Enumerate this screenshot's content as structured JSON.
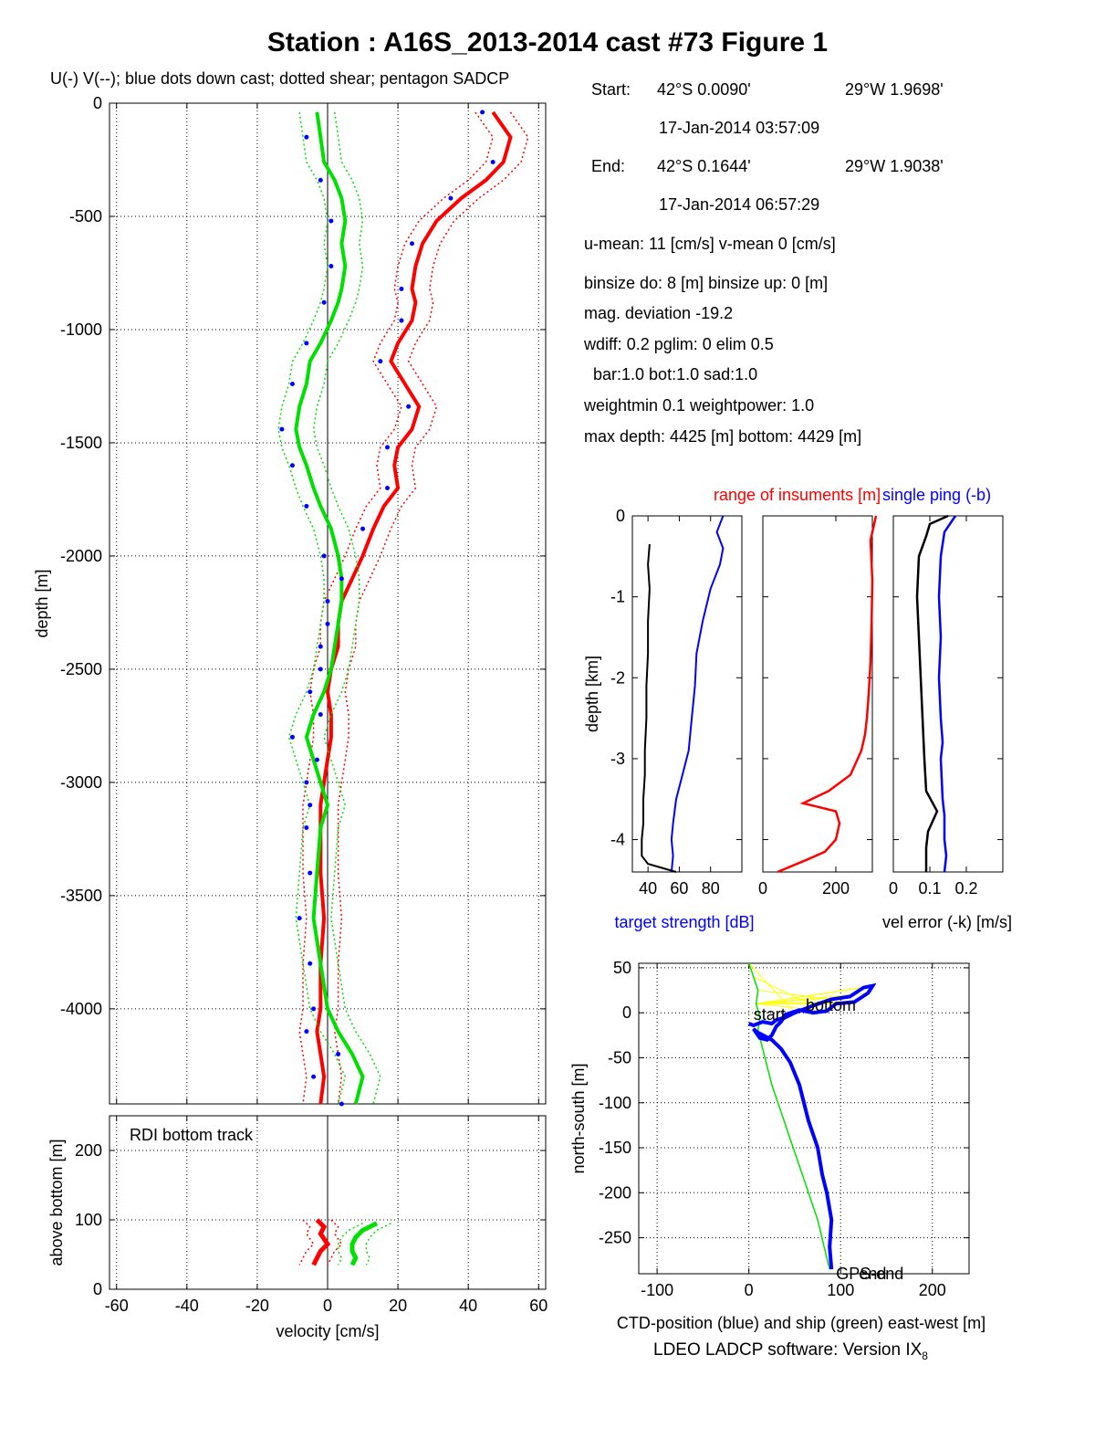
{
  "title": "Station : A16S_2013-2014 cast #73  Figure 1",
  "legend_note": "U(-) V(--); blue dots down cast; dotted shear; pentagon SADCP",
  "info": {
    "start_label": "Start:",
    "start_lat": "42°S  0.0090'",
    "start_lon": "29°W  1.9698'",
    "start_time": "17-Jan-2014 03:57:09",
    "end_label": "End:",
    "end_lat": "42°S  0.1644'",
    "end_lon": "29°W  1.9038'",
    "end_time": "17-Jan-2014 06:57:29",
    "lines": [
      "u-mean:  11 [cm/s]    v-mean   0 [cm/s]",
      "binsize do: 8 [m]  binsize up:  0 [m]",
      "mag. deviation -19.2",
      "wdiff: 0.2  pglim: 0  elim 0.5",
      "  bar:1.0 bot:1.0 sad:1.0",
      "weightmin 0.1  weightpower: 1.0",
      "max depth: 4425 [m]   bottom: 4429 [m]"
    ]
  },
  "footer": {
    "software": "LDEO LADCP software: Version IX",
    "version_sub": "8"
  },
  "colors": {
    "u": "#ff0000",
    "v": "#00e000",
    "down": "#0000ff",
    "ship": "#00e000",
    "ctd": "#0000ff",
    "track": "#ffff00",
    "grid": "#000000"
  },
  "chart_data": [
    {
      "type": "line",
      "title": "",
      "xlabel": "",
      "ylabel": "depth [m]",
      "xlim": [
        -62,
        62
      ],
      "ylim": [
        -4420,
        0
      ],
      "grid": true,
      "xticks": [
        -60,
        -40,
        -20,
        0,
        20,
        40,
        60
      ],
      "yticks": [
        0,
        -500,
        -1000,
        -1500,
        -2000,
        -2500,
        -3000,
        -3500,
        -4000
      ],
      "series": [
        {
          "name": "U",
          "color": "#ff0000",
          "x": [
            47,
            52,
            50,
            45,
            38,
            31,
            27,
            25,
            24,
            25,
            24,
            20,
            18,
            22,
            26,
            24,
            20,
            19,
            20,
            16,
            13,
            10,
            7,
            4,
            3,
            3,
            1,
            0,
            1,
            1,
            0,
            -1,
            -2,
            -2,
            -2,
            -1,
            -2,
            -2,
            -3,
            -2,
            -1,
            -2
          ],
          "y": [
            -40,
            -150,
            -260,
            -340,
            -420,
            -520,
            -620,
            -720,
            -820,
            -880,
            -960,
            -1060,
            -1140,
            -1240,
            -1340,
            -1440,
            -1520,
            -1600,
            -1700,
            -1780,
            -1880,
            -2000,
            -2100,
            -2200,
            -2300,
            -2400,
            -2500,
            -2600,
            -2700,
            -2800,
            -2900,
            -3000,
            -3100,
            -3200,
            -3400,
            -3600,
            -3800,
            -4000,
            -4100,
            -4200,
            -4300,
            -4420
          ]
        },
        {
          "name": "V",
          "color": "#00e000",
          "x": [
            -3,
            -2,
            -1,
            2,
            4,
            5,
            4,
            5,
            4,
            3,
            1,
            -2,
            -5,
            -6,
            -8,
            -9,
            -8,
            -6,
            -4,
            -2,
            1,
            3,
            4,
            4,
            3,
            2,
            1,
            -1,
            -4,
            -6,
            -4,
            -2,
            0,
            -2,
            -3,
            -4,
            -2,
            0,
            3,
            7,
            10,
            8
          ],
          "y": [
            -40,
            -150,
            -260,
            -340,
            -420,
            -520,
            -620,
            -720,
            -820,
            -880,
            -960,
            -1060,
            -1140,
            -1240,
            -1340,
            -1440,
            -1520,
            -1600,
            -1700,
            -1780,
            -1880,
            -2000,
            -2100,
            -2200,
            -2300,
            -2400,
            -2500,
            -2600,
            -2700,
            -2800,
            -2900,
            -3000,
            -3100,
            -3200,
            -3400,
            -3600,
            -3800,
            -4000,
            -4100,
            -4200,
            -4300,
            -4420
          ]
        }
      ]
    },
    {
      "type": "line",
      "title": "RDI bottom track",
      "xlabel": "velocity [cm/s]",
      "ylabel": "above bottom [m]",
      "xlim": [
        -62,
        62
      ],
      "ylim": [
        0,
        250
      ],
      "grid": true,
      "xticks": [
        -60,
        -40,
        -20,
        0,
        20,
        40,
        60
      ],
      "yticks": [
        0,
        100,
        200
      ],
      "series": [
        {
          "name": "U",
          "color": "#ff0000",
          "x": [
            -3,
            -1,
            -2,
            0,
            -2,
            -3,
            -4
          ],
          "y": [
            100,
            90,
            80,
            65,
            55,
            45,
            35
          ]
        },
        {
          "name": "V",
          "color": "#00e000",
          "x": [
            14,
            10,
            8,
            7,
            7,
            8,
            7
          ],
          "y": [
            95,
            85,
            75,
            65,
            55,
            45,
            35
          ]
        }
      ]
    },
    {
      "type": "line",
      "title": "",
      "xlabel": "target strength [dB]",
      "ylabel": "depth [km]",
      "xlim": [
        30,
        100
      ],
      "ylim": [
        -4.4,
        0
      ],
      "grid": false,
      "xticks": [
        40,
        60,
        80
      ],
      "yticks": [
        0,
        -1,
        -2,
        -3,
        -4
      ],
      "series": [
        {
          "name": "",
          "color": "#0000ff",
          "x": [
            88,
            84,
            88,
            86,
            80,
            75,
            71,
            70,
            68,
            66,
            62,
            58,
            56,
            55,
            56,
            55
          ],
          "y": [
            0,
            -0.2,
            -0.4,
            -0.6,
            -0.9,
            -1.3,
            -1.7,
            -2.1,
            -2.5,
            -2.9,
            -3.2,
            -3.5,
            -3.8,
            -4.0,
            -4.2,
            -4.4
          ]
        },
        {
          "name": "",
          "color": "#000000",
          "x": [
            41,
            40,
            41,
            40,
            40,
            39,
            39,
            38,
            38,
            37,
            37,
            36,
            36,
            36,
            40,
            58
          ],
          "y": [
            -0.35,
            -0.6,
            -0.9,
            -1.3,
            -1.7,
            -2.1,
            -2.5,
            -2.9,
            -3.2,
            -3.5,
            -3.8,
            -4.0,
            -4.1,
            -4.2,
            -4.3,
            -4.4
          ]
        }
      ]
    },
    {
      "type": "line",
      "title": "range of insuments [m]",
      "xlabel": "",
      "ylabel": "",
      "xlim": [
        0,
        300
      ],
      "ylim": [
        -4.4,
        0
      ],
      "grid": false,
      "xticks": [
        0,
        200
      ],
      "yticks": [
        0,
        -1,
        -2,
        -3,
        -4
      ],
      "series": [
        {
          "name": "",
          "color": "#ff0000",
          "x": [
            310,
            295,
            300,
            298,
            295,
            290,
            285,
            280,
            270,
            240,
            180,
            110,
            200,
            210,
            200,
            170,
            120,
            40
          ],
          "y": [
            0,
            -0.3,
            -0.8,
            -1.3,
            -1.8,
            -2.2,
            -2.5,
            -2.7,
            -2.9,
            -3.2,
            -3.4,
            -3.55,
            -3.65,
            -3.8,
            -4.0,
            -4.15,
            -4.25,
            -4.4
          ]
        }
      ]
    },
    {
      "type": "line",
      "title": "single ping (-b)",
      "xlabel": "vel error (-k) [m/s]",
      "ylabel": "",
      "xlim": [
        0,
        0.3
      ],
      "ylim": [
        -4.4,
        0
      ],
      "grid": false,
      "xticks": [
        0,
        0.1,
        0.2
      ],
      "yticks": [
        0,
        -1,
        -2,
        -3,
        -4
      ],
      "series": [
        {
          "name": "",
          "color": "#000000",
          "x": [
            0.15,
            0.1,
            0.09,
            0.07,
            0.065,
            0.07,
            0.075,
            0.08,
            0.085,
            0.09,
            0.12,
            0.11,
            0.095,
            0.09,
            0.09
          ],
          "y": [
            0,
            -0.1,
            -0.25,
            -0.5,
            -1.0,
            -1.5,
            -2.0,
            -2.5,
            -3.0,
            -3.4,
            -3.65,
            -3.75,
            -3.9,
            -4.1,
            -4.4
          ]
        },
        {
          "name": "",
          "color": "#0000ff",
          "x": [
            0.17,
            0.14,
            0.13,
            0.125,
            0.13,
            0.125,
            0.13,
            0.135,
            0.13,
            0.135,
            0.14,
            0.14,
            0.145,
            0.14
          ],
          "y": [
            0,
            -0.2,
            -0.5,
            -1.0,
            -1.5,
            -2.0,
            -2.5,
            -2.8,
            -3.0,
            -3.5,
            -3.7,
            -4.0,
            -4.2,
            -4.4
          ]
        }
      ]
    },
    {
      "type": "line",
      "title": "",
      "xlabel": "CTD-position (blue) and ship (green) east-west [m]",
      "ylabel": "north-south [m]",
      "xlim": [
        -120,
        240
      ],
      "ylim": [
        -290,
        55
      ],
      "grid": true,
      "xticks": [
        -100,
        0,
        100,
        200
      ],
      "yticks": [
        50,
        0,
        -50,
        -100,
        -150,
        -200,
        -250
      ],
      "annotations": [
        "start",
        "bottom",
        "GPS-end",
        "end"
      ],
      "series": [
        {
          "name": "",
          "color": "#0000ff",
          "x": [
            0,
            5,
            15,
            25,
            30,
            40,
            50,
            70,
            90,
            110,
            125,
            135,
            130,
            115,
            95,
            85,
            70,
            55,
            40,
            35,
            30,
            25,
            20,
            12,
            5,
            10,
            25,
            35,
            45,
            55,
            65,
            75,
            80,
            85,
            90,
            88,
            90
          ],
          "y": [
            -12,
            -14,
            -10,
            -12,
            -8,
            -5,
            0,
            8,
            15,
            18,
            28,
            30,
            22,
            12,
            10,
            2,
            0,
            3,
            -2,
            -10,
            -15,
            -25,
            -30,
            -28,
            -18,
            -22,
            -30,
            -40,
            -55,
            -80,
            -120,
            -150,
            -180,
            -200,
            -230,
            -260,
            -285
          ]
        },
        {
          "name": "",
          "color": "#00e000",
          "x": [
            0,
            5,
            10,
            8,
            12,
            10,
            15,
            25,
            35,
            45,
            55,
            65,
            75,
            82,
            88
          ],
          "y": [
            55,
            40,
            25,
            10,
            -5,
            -20,
            -40,
            -80,
            -110,
            -140,
            -170,
            -200,
            -230,
            -260,
            -285
          ]
        }
      ]
    }
  ]
}
